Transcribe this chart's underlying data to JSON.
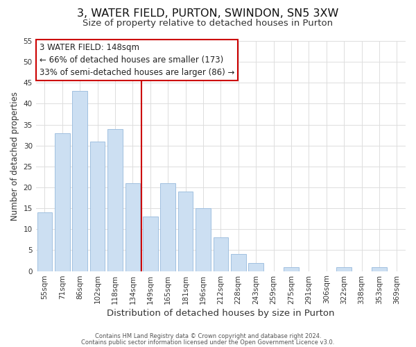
{
  "title": "3, WATER FIELD, PURTON, SWINDON, SN5 3XW",
  "subtitle": "Size of property relative to detached houses in Purton",
  "xlabel": "Distribution of detached houses by size in Purton",
  "ylabel": "Number of detached properties",
  "bar_labels": [
    "55sqm",
    "71sqm",
    "86sqm",
    "102sqm",
    "118sqm",
    "134sqm",
    "149sqm",
    "165sqm",
    "181sqm",
    "196sqm",
    "212sqm",
    "228sqm",
    "243sqm",
    "259sqm",
    "275sqm",
    "291sqm",
    "306sqm",
    "322sqm",
    "338sqm",
    "353sqm",
    "369sqm"
  ],
  "bar_values": [
    14,
    33,
    43,
    31,
    34,
    21,
    13,
    21,
    19,
    15,
    8,
    4,
    2,
    0,
    1,
    0,
    0,
    1,
    0,
    1,
    0
  ],
  "bar_color": "#ccdff2",
  "bar_edge_color": "#a0c0e0",
  "marker_index": 6,
  "marker_color": "#cc0000",
  "ylim": [
    0,
    55
  ],
  "yticks": [
    0,
    5,
    10,
    15,
    20,
    25,
    30,
    35,
    40,
    45,
    50,
    55
  ],
  "annotation_title": "3 WATER FIELD: 148sqm",
  "annotation_line1": "← 66% of detached houses are smaller (173)",
  "annotation_line2": "33% of semi-detached houses are larger (86) →",
  "footer1": "Contains HM Land Registry data © Crown copyright and database right 2024.",
  "footer2": "Contains public sector information licensed under the Open Government Licence v3.0.",
  "background_color": "#ffffff",
  "grid_color": "#dddddd",
  "title_fontsize": 11.5,
  "subtitle_fontsize": 9.5,
  "xlabel_fontsize": 9.5,
  "ylabel_fontsize": 8.5,
  "tick_fontsize": 7.5,
  "footer_fontsize": 6.0,
  "annotation_fontsize": 8.5,
  "annotation_box_edge_color": "#cc0000",
  "annotation_box_face_color": "#ffffff"
}
